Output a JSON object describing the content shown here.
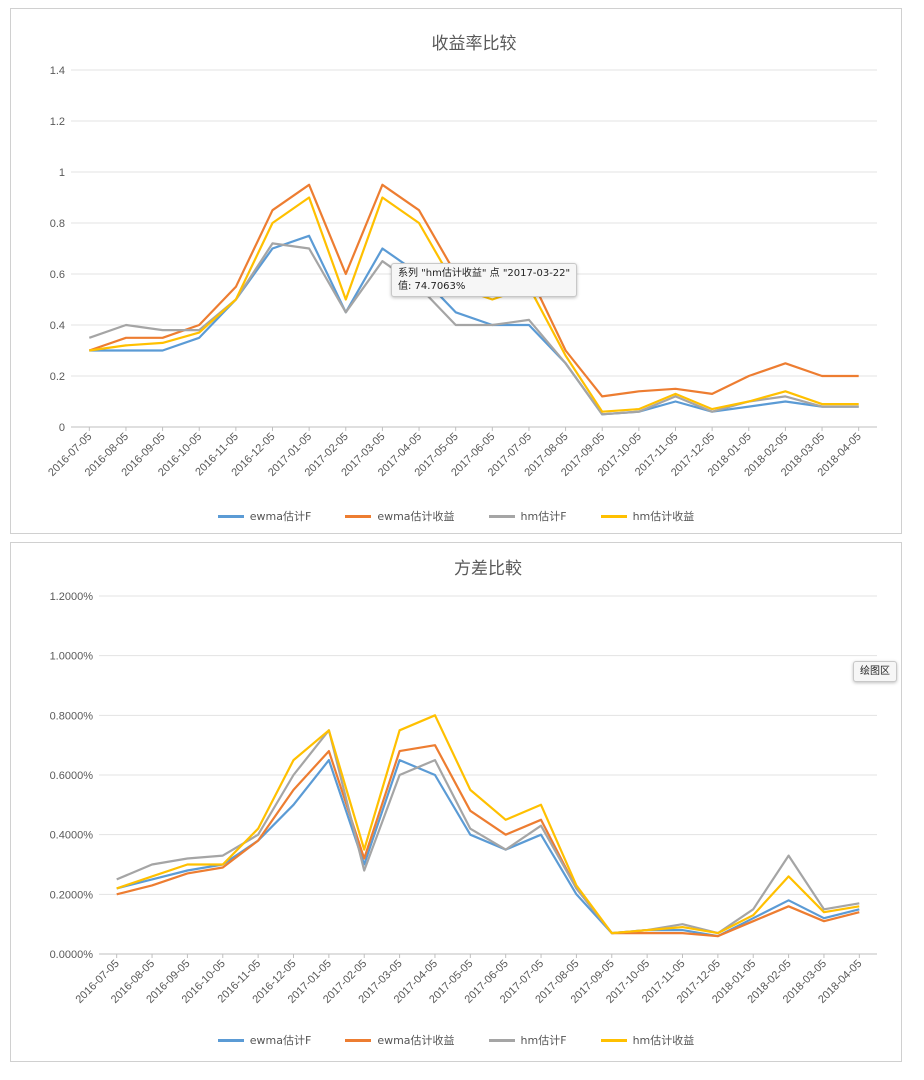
{
  "colors": {
    "ewma_f": "#5b9bd5",
    "ewma_ret": "#ed7d31",
    "hm_f": "#a5a5a5",
    "hm_ret": "#ffc000",
    "grid": "#e3e3e3",
    "axis": "#bfbfbf",
    "text": "#595959"
  },
  "x_ticks": [
    "2016-07-05",
    "2016-08-05",
    "2016-09-05",
    "2016-10-05",
    "2016-11-05",
    "2016-12-05",
    "2017-01-05",
    "2017-02-05",
    "2017-03-05",
    "2017-04-05",
    "2017-05-05",
    "2017-06-05",
    "2017-07-05",
    "2017-08-05",
    "2017-09-05",
    "2017-10-05",
    "2017-11-05",
    "2017-12-05",
    "2018-01-05",
    "2018-02-05",
    "2018-03-05",
    "2018-04-05"
  ],
  "legend": [
    {
      "label": "ewma估计F",
      "color": "#5b9bd5"
    },
    {
      "label": "ewma估计收益",
      "color": "#ed7d31"
    },
    {
      "label": "hm估计F",
      "color": "#a5a5a5"
    },
    {
      "label": "hm估计收益",
      "color": "#ffc000"
    }
  ],
  "tooltip1": {
    "line1": "系列 \"hm估计收益\" 点 \"2017-03-22\"",
    "line2": "值: 74.7063%"
  },
  "tooltip2": {
    "label": "绘图区"
  },
  "chart_data": [
    {
      "type": "line",
      "title": "收益率比较",
      "ylim": [
        0,
        1.4
      ],
      "y_ticks": [
        "0",
        "0.2",
        "0.4",
        "0.6",
        "0.8",
        "1",
        "1.2",
        "1.4"
      ],
      "x": [
        "2016-07-05",
        "2016-08-05",
        "2016-09-05",
        "2016-10-05",
        "2016-11-05",
        "2016-12-05",
        "2017-01-05",
        "2017-02-05",
        "2017-03-05",
        "2017-04-05",
        "2017-05-05",
        "2017-06-05",
        "2017-07-05",
        "2017-08-05",
        "2017-09-05",
        "2017-10-05",
        "2017-11-05",
        "2017-12-05",
        "2018-01-05",
        "2018-02-05",
        "2018-03-05",
        "2018-04-05"
      ],
      "series": [
        {
          "name": "ewma估计F",
          "values": [
            0.3,
            0.3,
            0.3,
            0.35,
            0.5,
            0.7,
            0.75,
            0.45,
            0.7,
            0.6,
            0.45,
            0.4,
            0.4,
            0.25,
            0.05,
            0.06,
            0.1,
            0.06,
            0.08,
            0.1,
            0.08,
            0.08
          ]
        },
        {
          "name": "ewma估计收益",
          "values": [
            0.3,
            0.35,
            0.35,
            0.4,
            0.55,
            0.85,
            0.95,
            0.6,
            0.95,
            0.85,
            0.6,
            0.55,
            0.6,
            0.3,
            0.12,
            0.14,
            0.15,
            0.13,
            0.2,
            0.25,
            0.2,
            0.2
          ]
        },
        {
          "name": "hm估计F",
          "values": [
            0.35,
            0.4,
            0.38,
            0.38,
            0.5,
            0.72,
            0.7,
            0.45,
            0.65,
            0.55,
            0.4,
            0.4,
            0.42,
            0.25,
            0.05,
            0.06,
            0.12,
            0.06,
            0.1,
            0.12,
            0.08,
            0.08
          ]
        },
        {
          "name": "hm估计收益",
          "values": [
            0.3,
            0.32,
            0.33,
            0.37,
            0.5,
            0.8,
            0.9,
            0.5,
            0.9,
            0.8,
            0.55,
            0.5,
            0.55,
            0.28,
            0.06,
            0.07,
            0.13,
            0.07,
            0.1,
            0.14,
            0.09,
            0.09
          ]
        }
      ]
    },
    {
      "type": "line",
      "title": "方差比較",
      "ylim": [
        0,
        0.012
      ],
      "y_ticks": [
        "0.0000%",
        "0.2000%",
        "0.4000%",
        "0.6000%",
        "0.8000%",
        "1.0000%",
        "1.2000%"
      ],
      "x": [
        "2016-07-05",
        "2016-08-05",
        "2016-09-05",
        "2016-10-05",
        "2016-11-05",
        "2016-12-05",
        "2017-01-05",
        "2017-02-05",
        "2017-03-05",
        "2017-04-05",
        "2017-05-05",
        "2017-06-05",
        "2017-07-05",
        "2017-08-05",
        "2017-09-05",
        "2017-10-05",
        "2017-11-05",
        "2017-12-05",
        "2018-01-05",
        "2018-02-05",
        "2018-03-05",
        "2018-04-05"
      ],
      "series": [
        {
          "name": "ewma估计F",
          "values": [
            0.0022,
            0.0025,
            0.0028,
            0.003,
            0.0038,
            0.005,
            0.0065,
            0.003,
            0.0065,
            0.006,
            0.004,
            0.0035,
            0.004,
            0.002,
            0.0007,
            0.0008,
            0.0008,
            0.0006,
            0.0012,
            0.0018,
            0.0012,
            0.0015
          ]
        },
        {
          "name": "ewma估计收益",
          "values": [
            0.002,
            0.0023,
            0.0027,
            0.0029,
            0.0038,
            0.0055,
            0.0068,
            0.0032,
            0.0068,
            0.007,
            0.0048,
            0.004,
            0.0045,
            0.0022,
            0.0007,
            0.0007,
            0.0007,
            0.0006,
            0.0011,
            0.0016,
            0.0011,
            0.0014
          ]
        },
        {
          "name": "hm估计F",
          "values": [
            0.0025,
            0.003,
            0.0032,
            0.0033,
            0.004,
            0.006,
            0.0075,
            0.0028,
            0.006,
            0.0065,
            0.0042,
            0.0035,
            0.0043,
            0.0022,
            0.0007,
            0.0008,
            0.001,
            0.0007,
            0.0015,
            0.0033,
            0.0015,
            0.0017
          ]
        },
        {
          "name": "hm估计收益",
          "values": [
            0.0022,
            0.0026,
            0.003,
            0.003,
            0.0042,
            0.0065,
            0.0075,
            0.0035,
            0.0075,
            0.008,
            0.0055,
            0.0045,
            0.005,
            0.0023,
            0.0007,
            0.0008,
            0.0009,
            0.0007,
            0.0013,
            0.0026,
            0.0014,
            0.0016
          ]
        }
      ]
    }
  ]
}
